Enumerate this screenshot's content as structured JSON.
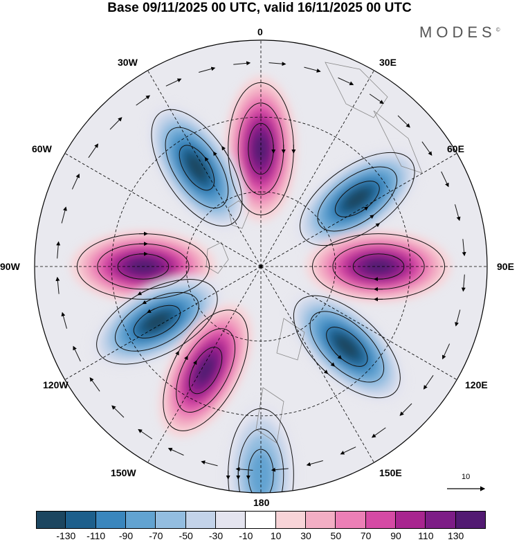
{
  "title": "Base 09/11/2025 00 UTC, valid 16/11/2025 00 UTC",
  "brand": "MODES",
  "brand_mark": "©",
  "longitude_labels": [
    "0",
    "30E",
    "60E",
    "90E",
    "120E",
    "150E",
    "180",
    "150W",
    "120W",
    "90W",
    "60W",
    "30W"
  ],
  "reference_vector": "10",
  "colorbar": {
    "labels": [
      "-130",
      "-110",
      "-90",
      "-70",
      "-50",
      "-30",
      "-10",
      "10",
      "30",
      "50",
      "70",
      "90",
      "110",
      "130"
    ],
    "colors": [
      "#1c4660",
      "#1d5f8c",
      "#3a86bd",
      "#62a3d1",
      "#93bde0",
      "#c3d3e9",
      "#e4e4ef",
      "#ffffff",
      "#f8d4d8",
      "#f3aec4",
      "#ec7fb6",
      "#d54aa4",
      "#a8258f",
      "#7d1d86",
      "#521a72"
    ]
  },
  "map": {
    "projection": "polar stereographic, North Pole centered",
    "anomaly_lobes": [
      {
        "sign": "positive",
        "intensity": "strong",
        "sector": "0"
      },
      {
        "sign": "negative",
        "intensity": "strong",
        "sector": "30W"
      },
      {
        "sign": "negative",
        "intensity": "strong",
        "sector": "60E"
      },
      {
        "sign": "positive",
        "intensity": "strong",
        "sector": "90W"
      },
      {
        "sign": "positive",
        "intensity": "strong",
        "sector": "90E"
      },
      {
        "sign": "negative",
        "intensity": "strong",
        "sector": "120W"
      },
      {
        "sign": "negative",
        "intensity": "strong",
        "sector": "135E"
      },
      {
        "sign": "positive",
        "intensity": "strong",
        "sector": "150W"
      },
      {
        "sign": "negative",
        "intensity": "moderate",
        "sector": "180"
      }
    ]
  }
}
